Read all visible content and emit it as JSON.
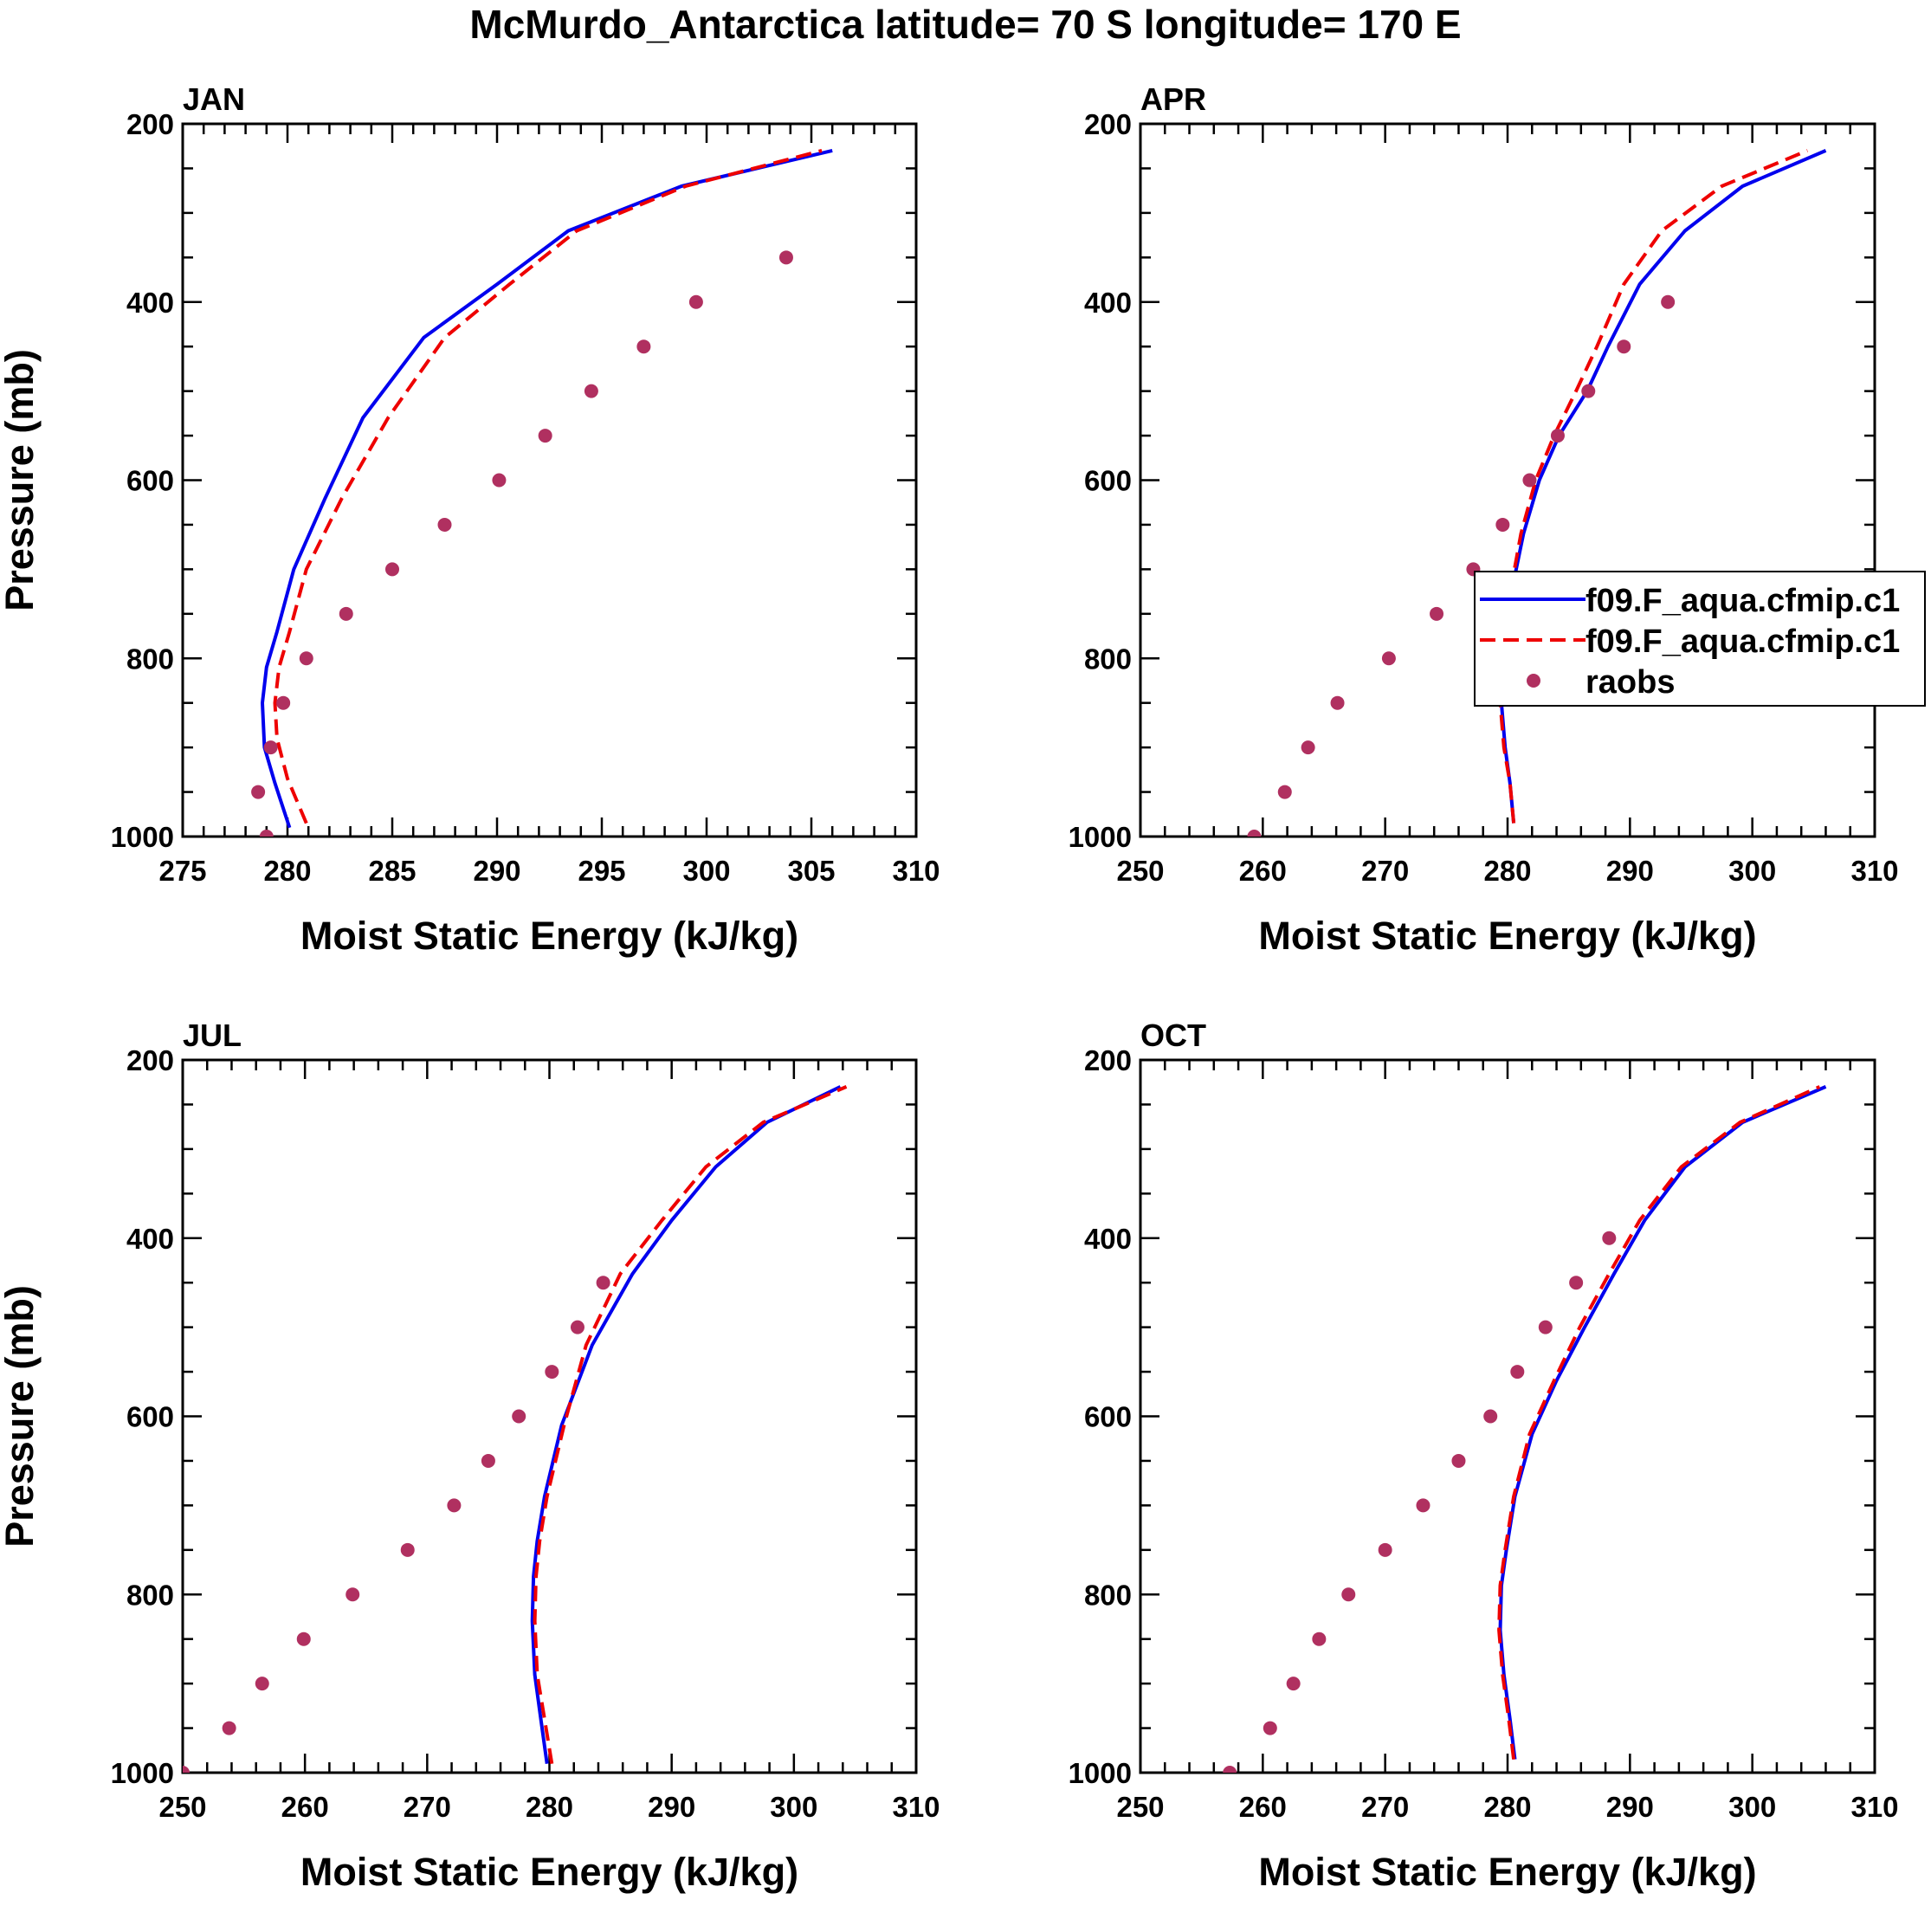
{
  "figure": {
    "title": "McMurdo_Antarctica  latitude= 70 S longitude= 170 E"
  },
  "colors": {
    "model1": "#0000ee",
    "model2": "#ee0000",
    "obs": "#b03060",
    "axis": "#000000"
  },
  "legend": {
    "entries": [
      {
        "label": "f09.F_aqua.cfmip.c1",
        "style": "solid",
        "color": "#0000ee"
      },
      {
        "label": "f09.F_aqua.cfmip.c1",
        "style": "dashed",
        "color": "#ee0000"
      },
      {
        "label": "raobs",
        "style": "marker",
        "color": "#b03060"
      }
    ]
  },
  "chart_data": [
    {
      "type": "line",
      "title": "JAN",
      "xlabel": "Moist Static Energy (kJ/kg)",
      "ylabel": "Pressure (mb)",
      "xlim": [
        275,
        310
      ],
      "ylim": [
        1000,
        200
      ],
      "xticks": [
        275,
        280,
        285,
        290,
        295,
        300,
        305,
        310
      ],
      "yticks": [
        200,
        400,
        600,
        800,
        1000
      ],
      "series": [
        {
          "name": "f09.F_aqua.cfmip.c1 (solid)",
          "x": [
            280.1,
            279.4,
            278.9,
            278.8,
            279.0,
            279.5,
            280.3,
            281.8,
            283.6,
            286.5,
            290.0,
            293.4,
            298.8,
            306.0
          ],
          "y": [
            990,
            940,
            900,
            850,
            810,
            770,
            700,
            620,
            530,
            440,
            380,
            320,
            270,
            230
          ]
        },
        {
          "name": "f09.F_aqua.cfmip.c1 (dashed)",
          "x": [
            280.9,
            280.0,
            279.5,
            279.4,
            279.6,
            280.1,
            280.9,
            282.6,
            284.8,
            287.5,
            290.6,
            293.8,
            299.0,
            305.5
          ],
          "y": [
            985,
            935,
            890,
            850,
            810,
            770,
            700,
            620,
            530,
            440,
            380,
            320,
            270,
            230
          ]
        },
        {
          "name": "raobs",
          "x": [
            279.0,
            278.6,
            279.2,
            279.8,
            280.9,
            282.8,
            285.0,
            287.5,
            290.1,
            292.3,
            294.5,
            297.0,
            299.5,
            303.8
          ],
          "y": [
            1000,
            950,
            900,
            850,
            800,
            750,
            700,
            650,
            600,
            550,
            500,
            450,
            400,
            350
          ]
        }
      ]
    },
    {
      "type": "line",
      "title": "APR",
      "xlabel": "Moist Static Energy (kJ/kg)",
      "ylabel": "",
      "xlim": [
        250,
        310
      ],
      "ylim": [
        1000,
        200
      ],
      "xticks": [
        250,
        260,
        270,
        280,
        290,
        300,
        310
      ],
      "yticks": [
        200,
        400,
        600,
        800,
        1000
      ],
      "series": [
        {
          "name": "f09.F_aqua.cfmip.c1 (solid)",
          "x": [
            280.5,
            280.2,
            279.8,
            279.5,
            279.6,
            279.9,
            280.4,
            281.3,
            282.6,
            284.2,
            286.5,
            288.2,
            290.8,
            294.5,
            299.2,
            306.0
          ],
          "y": [
            985,
            940,
            900,
            850,
            810,
            770,
            720,
            660,
            600,
            550,
            500,
            450,
            380,
            320,
            270,
            230
          ]
        },
        {
          "name": "f09.F_aqua.cfmip.c1 (dashed)",
          "x": [
            280.5,
            280.2,
            279.7,
            279.4,
            279.5,
            279.8,
            280.3,
            281.1,
            282.3,
            283.8,
            285.6,
            287.3,
            289.5,
            292.6,
            297.5,
            304.5
          ],
          "y": [
            985,
            940,
            900,
            850,
            810,
            770,
            720,
            660,
            600,
            550,
            500,
            450,
            380,
            320,
            270,
            230
          ]
        },
        {
          "name": "raobs",
          "x": [
            259.3,
            261.8,
            263.7,
            266.1,
            270.3,
            274.2,
            277.2,
            279.6,
            281.8,
            284.1,
            286.6,
            289.5,
            293.1
          ],
          "y": [
            1000,
            950,
            900,
            850,
            800,
            750,
            700,
            650,
            600,
            550,
            500,
            450,
            400
          ]
        }
      ]
    },
    {
      "type": "line",
      "title": "JUL",
      "xlabel": "Moist Static Energy (kJ/kg)",
      "ylabel": "Pressure (mb)",
      "xlim": [
        250,
        310
      ],
      "ylim": [
        1000,
        200
      ],
      "xticks": [
        250,
        260,
        270,
        280,
        290,
        300,
        310
      ],
      "yticks": [
        200,
        400,
        600,
        800,
        1000
      ],
      "series": [
        {
          "name": "f09.F_aqua.cfmip.c1 (solid)",
          "x": [
            279.8,
            279.3,
            278.8,
            278.6,
            278.7,
            279.0,
            279.6,
            281.0,
            283.5,
            286.8,
            290.0,
            293.6,
            297.8,
            303.8
          ],
          "y": [
            990,
            940,
            890,
            830,
            780,
            740,
            690,
            610,
            520,
            440,
            380,
            320,
            270,
            230
          ]
        },
        {
          "name": "f09.F_aqua.cfmip.c1 (dashed)",
          "x": [
            280.2,
            279.6,
            279.0,
            278.8,
            278.9,
            279.2,
            279.8,
            281.2,
            283.0,
            285.8,
            289.2,
            292.8,
            297.5,
            304.3
          ],
          "y": [
            990,
            940,
            890,
            830,
            780,
            740,
            690,
            610,
            520,
            440,
            380,
            320,
            270,
            230
          ]
        },
        {
          "name": "raobs",
          "x": [
            250.0,
            253.8,
            256.5,
            259.9,
            263.9,
            268.4,
            272.2,
            275.0,
            277.5,
            280.2,
            282.3,
            284.4
          ],
          "y": [
            1000,
            950,
            900,
            850,
            800,
            750,
            700,
            650,
            600,
            550,
            500,
            450
          ]
        }
      ]
    },
    {
      "type": "line",
      "title": "OCT",
      "xlabel": "Moist Static Energy (kJ/kg)",
      "ylabel": "",
      "xlim": [
        250,
        310
      ],
      "ylim": [
        1000,
        200
      ],
      "xticks": [
        250,
        260,
        270,
        280,
        290,
        300,
        310
      ],
      "yticks": [
        200,
        400,
        600,
        800,
        1000
      ],
      "series": [
        {
          "name": "f09.F_aqua.cfmip.c1 (solid)",
          "x": [
            280.6,
            280.2,
            279.7,
            279.4,
            279.5,
            279.9,
            280.6,
            282.0,
            284.0,
            286.3,
            288.7,
            291.2,
            294.5,
            299.2,
            306.0
          ],
          "y": [
            985,
            940,
            890,
            840,
            790,
            750,
            690,
            620,
            560,
            500,
            440,
            380,
            320,
            270,
            230
          ]
        },
        {
          "name": "f09.F_aqua.cfmip.c1 (dashed)",
          "x": [
            280.5,
            280.1,
            279.6,
            279.3,
            279.4,
            279.8,
            280.5,
            281.8,
            283.8,
            285.9,
            288.3,
            290.8,
            294.2,
            299.0,
            305.5
          ],
          "y": [
            985,
            940,
            890,
            840,
            790,
            750,
            690,
            620,
            560,
            500,
            440,
            380,
            320,
            270,
            230
          ]
        },
        {
          "name": "raobs",
          "x": [
            257.3,
            260.6,
            262.5,
            264.6,
            267.0,
            270.0,
            273.1,
            276.0,
            278.6,
            280.8,
            283.1,
            285.6,
            288.3
          ],
          "y": [
            1000,
            950,
            900,
            850,
            800,
            750,
            700,
            650,
            600,
            550,
            500,
            450,
            400
          ]
        }
      ]
    }
  ]
}
